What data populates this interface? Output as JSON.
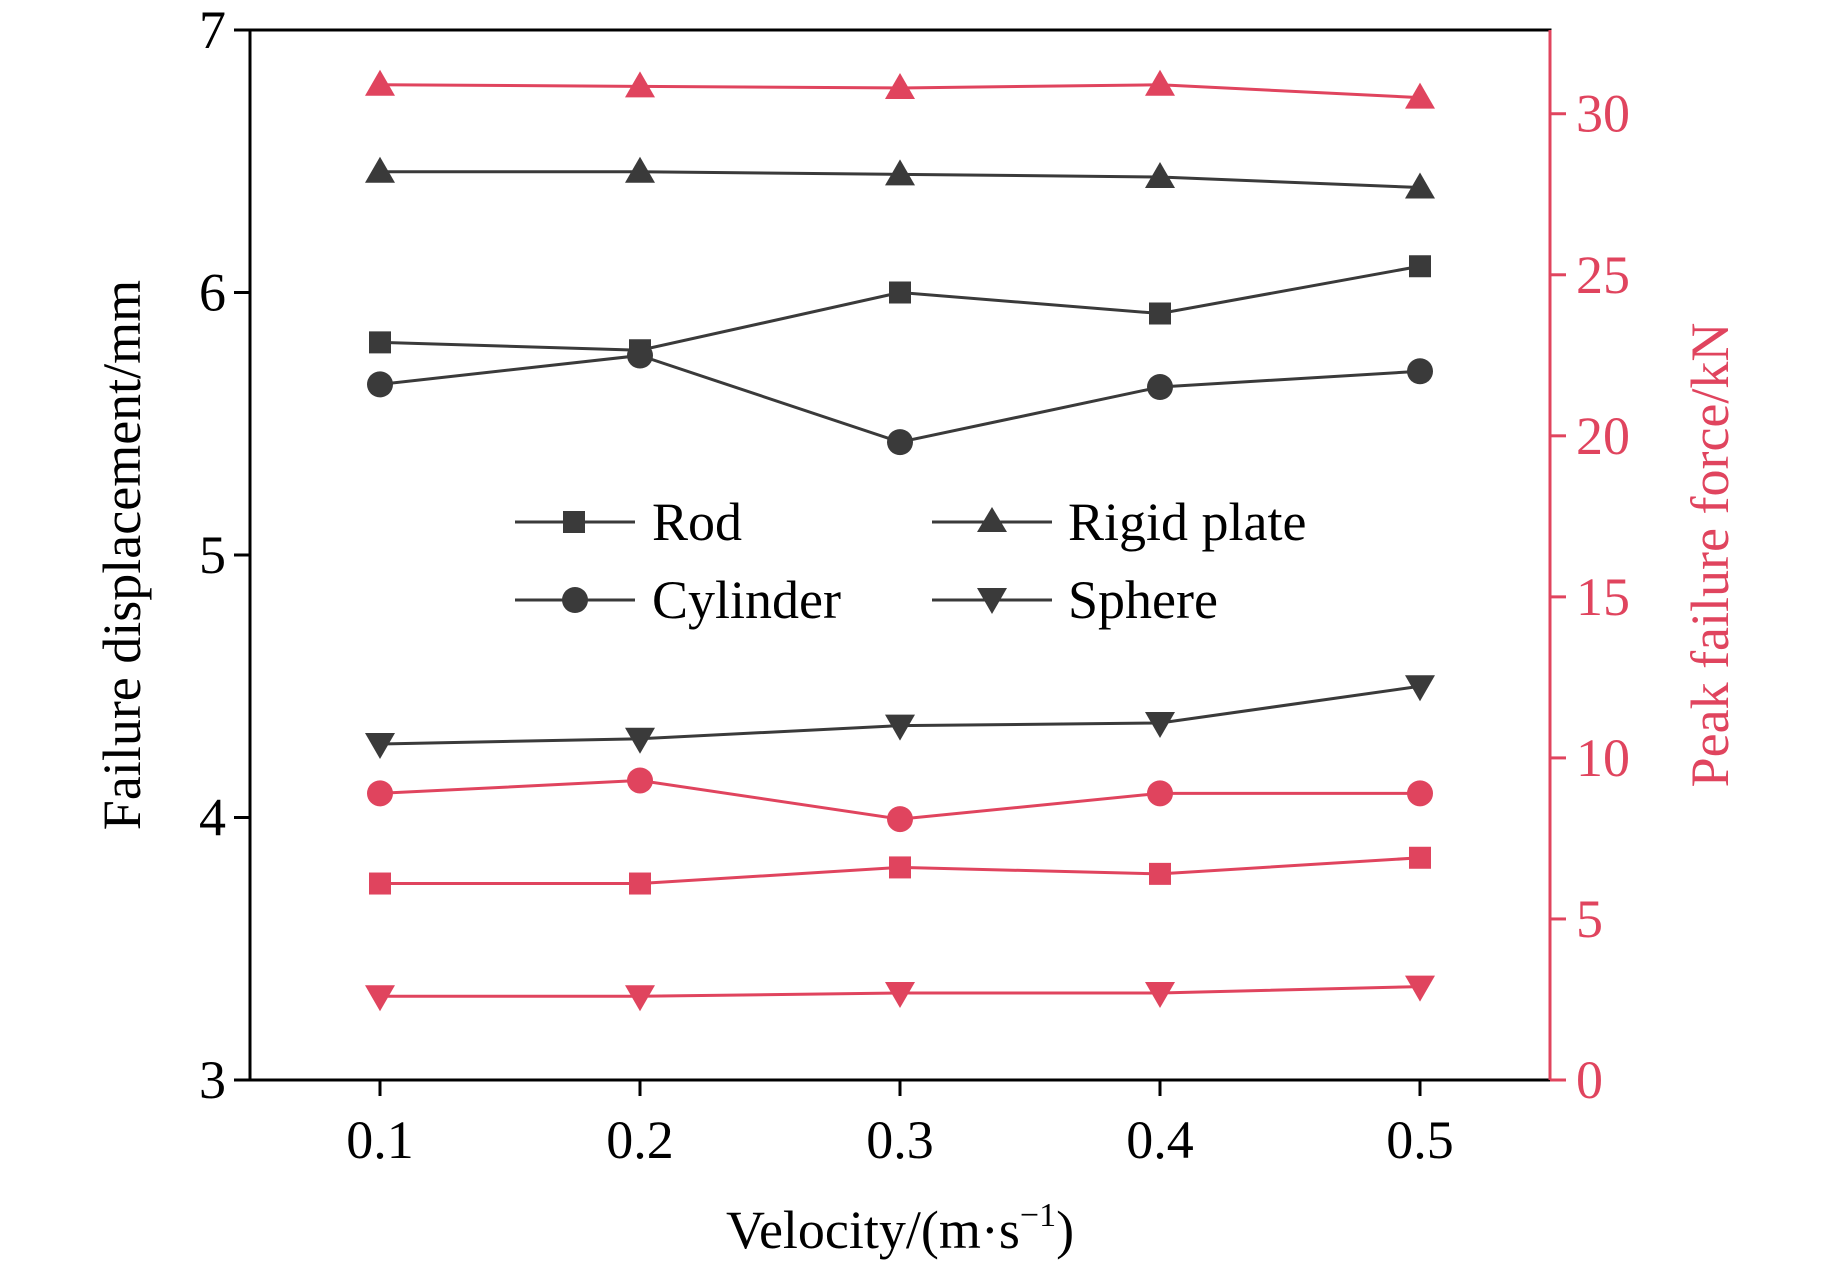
{
  "colors": {
    "black_series": "#3a3a3a",
    "red_series": "#e0445e",
    "axis": "#000000",
    "right_axis": "#e0445e"
  },
  "chart_data": {
    "type": "line",
    "title": "",
    "xlabel": "Velocity/(m·s",
    "xlabel_sup": "−1",
    "xlabel_end": ")",
    "ylabel": "Failure displacement/mm",
    "y2label": "Peak failure force/kN",
    "x": [
      0.1,
      0.2,
      0.3,
      0.4,
      0.5
    ],
    "x_tick_labels": [
      "0.1",
      "0.2",
      "0.3",
      "0.4",
      "0.5"
    ],
    "xlim": [
      0.05,
      0.55
    ],
    "ylim": [
      3,
      7
    ],
    "y_ticks": [
      3,
      4,
      5,
      6,
      7
    ],
    "y_tick_labels": [
      "3",
      "4",
      "5",
      "6",
      "7"
    ],
    "y2lim": [
      0,
      32.6
    ],
    "y2_ticks": [
      0,
      5,
      10,
      15,
      20,
      25,
      30
    ],
    "y2_tick_labels": [
      "0",
      "5",
      "10",
      "15",
      "20",
      "25",
      "30"
    ],
    "legend": [
      "Rod",
      "Rigid plate",
      "Cylinder",
      "Sphere"
    ],
    "series": [
      {
        "name": "Rod",
        "axis": "left",
        "marker": "square",
        "color": "#3a3a3a",
        "values": [
          5.81,
          5.78,
          6.0,
          5.92,
          6.1
        ]
      },
      {
        "name": "Rigid plate",
        "axis": "left",
        "marker": "triangle-up",
        "color": "#3a3a3a",
        "values": [
          6.46,
          6.46,
          6.45,
          6.44,
          6.4
        ]
      },
      {
        "name": "Cylinder",
        "axis": "left",
        "marker": "circle",
        "color": "#3a3a3a",
        "values": [
          5.65,
          5.76,
          5.43,
          5.64,
          5.7
        ]
      },
      {
        "name": "Sphere",
        "axis": "left",
        "marker": "triangle-down",
        "color": "#3a3a3a",
        "values": [
          4.28,
          4.3,
          4.35,
          4.36,
          4.5
        ]
      },
      {
        "name": "Rigid plate (force)",
        "axis": "right",
        "marker": "triangle-up",
        "color": "#e0445e",
        "values": [
          30.9,
          30.85,
          30.8,
          30.9,
          30.5
        ]
      },
      {
        "name": "Cylinder (force)",
        "axis": "right",
        "marker": "circle",
        "color": "#e0445e",
        "values": [
          8.9,
          9.3,
          8.1,
          8.9,
          8.9
        ]
      },
      {
        "name": "Rod (force)",
        "axis": "right",
        "marker": "square",
        "color": "#e0445e",
        "values": [
          6.1,
          6.1,
          6.6,
          6.4,
          6.9
        ]
      },
      {
        "name": "Sphere (force)",
        "axis": "right",
        "marker": "triangle-down",
        "color": "#e0445e",
        "values": [
          2.6,
          2.6,
          2.7,
          2.7,
          2.9
        ]
      }
    ]
  }
}
